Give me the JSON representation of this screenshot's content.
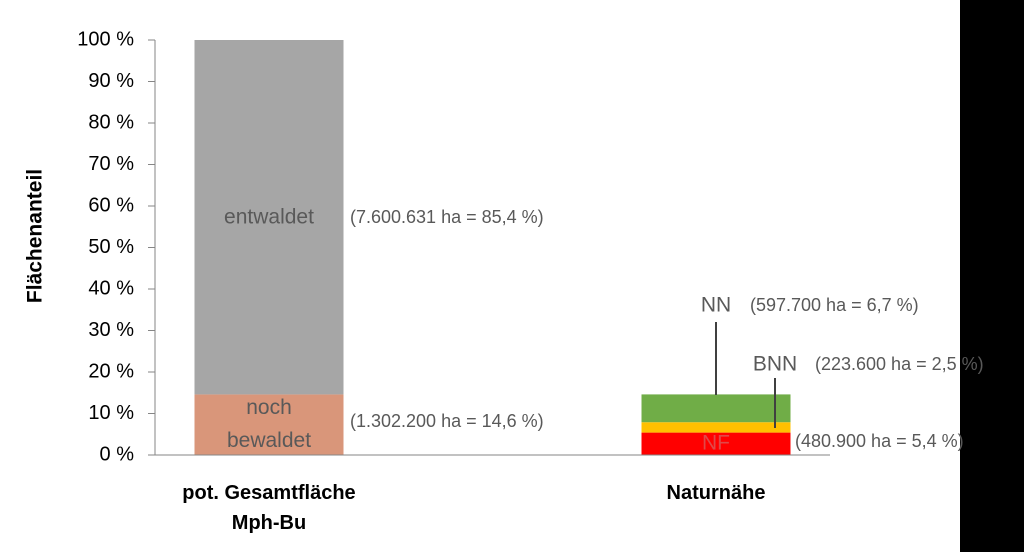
{
  "chart_data": {
    "type": "stacked-bar",
    "y_label": "Flächenanteil",
    "categories": [
      "pot. Gesamtfläche Mph-Bu",
      "Naturnähe"
    ],
    "series": [
      {
        "name": "noch bewaldet",
        "color": "#d9967a",
        "values": [
          14.6,
          null
        ],
        "value_labels": [
          "(1.302.200 ha = 14,6 %)",
          null
        ]
      },
      {
        "name": "entwaldet",
        "color": "#a6a6a6",
        "values": [
          85.4,
          null
        ],
        "value_labels": [
          "(7.600.631 ha = 85,4 %)",
          null
        ]
      },
      {
        "name": "NF",
        "color": "#ff0000",
        "values": [
          null,
          5.4
        ],
        "value_labels": [
          null,
          "(480.900 ha = 5,4 %)"
        ]
      },
      {
        "name": "BNN",
        "color": "#ffc000",
        "values": [
          null,
          2.5
        ],
        "value_labels": [
          null,
          "(223.600 ha = 2,5 %)"
        ]
      },
      {
        "name": "NN",
        "color": "#70ad47",
        "values": [
          null,
          6.7
        ],
        "value_labels": [
          null,
          "(597.700 ha = 6,7 %)"
        ]
      }
    ],
    "ylim": [
      0,
      100
    ],
    "yticks": [
      {
        "value": 0,
        "label": "0 %"
      },
      {
        "value": 10,
        "label": "10 %"
      },
      {
        "value": 20,
        "label": "20 %"
      },
      {
        "value": 30,
        "label": "30 %"
      },
      {
        "value": 40,
        "label": "40 %"
      },
      {
        "value": 50,
        "label": "50 %"
      },
      {
        "value": 60,
        "label": "60 %"
      },
      {
        "value": 70,
        "label": "70 %"
      },
      {
        "value": 80,
        "label": "80 %"
      },
      {
        "value": 90,
        "label": "90 %"
      },
      {
        "value": 100,
        "label": "100 %"
      }
    ],
    "grid": false
  }
}
